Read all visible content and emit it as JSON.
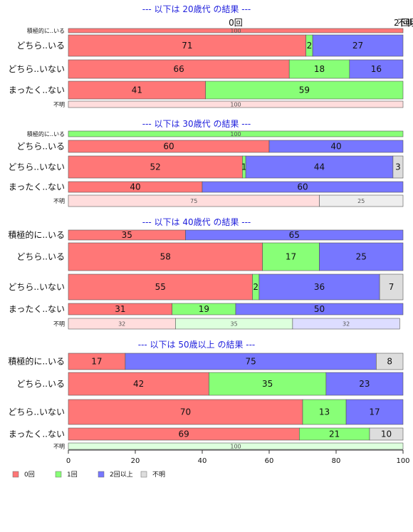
{
  "colors": {
    "c0": "#ff7777",
    "c1": "#88ff77",
    "c2": "#7777ff",
    "unk": "#dddddd",
    "c0_light": "#ffdddd",
    "c1_light": "#ddffdd",
    "c2_light": "#ddddff",
    "unk_light": "#eeeeee",
    "title": "#2222dd"
  },
  "legend": [
    "0回",
    "1回",
    "2回以上",
    "不明"
  ],
  "top_header": {
    "label": "0回",
    "crowded_labels": [
      "2",
      "不明",
      "回以上"
    ]
  },
  "chart_data": {
    "type": "bar",
    "orientation": "horizontal",
    "stacked": "percent",
    "series_names": [
      "0回",
      "1回",
      "2回以上",
      "不明"
    ],
    "xlim": [
      0,
      100
    ],
    "xticks": [
      "0",
      "20",
      "40",
      "60",
      "80",
      "100"
    ],
    "panels": [
      {
        "title": "--- 以下は 20歳代 の結果 ---",
        "rows": [
          {
            "label": "積極的に..いる",
            "values": [
              100,
              0,
              0,
              0
            ]
          },
          {
            "label": "どちら..いる",
            "values": [
              71,
              2,
              27,
              0
            ]
          },
          {
            "label": "どちら..いない",
            "values": [
              66,
              18,
              16,
              0
            ]
          },
          {
            "label": "まったく..ない",
            "values": [
              41,
              59,
              0,
              0
            ]
          },
          {
            "label": "不明",
            "values": [
              100,
              0,
              0,
              0
            ]
          }
        ]
      },
      {
        "title": "--- 以下は 30歳代 の結果 ---",
        "rows": [
          {
            "label": "積極的に..いる",
            "values": [
              0,
              100,
              0,
              0
            ]
          },
          {
            "label": "どちら..いる",
            "values": [
              60,
              0,
              40,
              0
            ]
          },
          {
            "label": "どちら..いない",
            "values": [
              52,
              1,
              44,
              3
            ]
          },
          {
            "label": "まったく..ない",
            "values": [
              40,
              0,
              60,
              0
            ]
          },
          {
            "label": "不明",
            "values": [
              75,
              0,
              0,
              25
            ]
          }
        ]
      },
      {
        "title": "--- 以下は 40歳代 の結果 ---",
        "rows": [
          {
            "label": "積極的に..いる",
            "values": [
              35,
              0,
              65,
              0
            ]
          },
          {
            "label": "どちら..いる",
            "values": [
              58,
              17,
              25,
              0
            ]
          },
          {
            "label": "どちら..いない",
            "values": [
              55,
              2,
              36,
              7
            ]
          },
          {
            "label": "まったく..ない",
            "values": [
              31,
              19,
              50,
              0
            ]
          },
          {
            "label": "不明",
            "values": [
              32,
              35,
              32,
              0
            ]
          }
        ]
      },
      {
        "title": "--- 以下は 50歳以上 の結果 ---",
        "rows": [
          {
            "label": "積極的に..いる",
            "values": [
              17,
              0,
              75,
              8
            ]
          },
          {
            "label": "どちら..いる",
            "values": [
              42,
              35,
              23,
              0
            ]
          },
          {
            "label": "どちら..いない",
            "values": [
              70,
              13,
              17,
              0
            ]
          },
          {
            "label": "まったく..ない",
            "values": [
              69,
              21,
              0,
              10
            ]
          },
          {
            "label": "不明",
            "values": [
              0,
              100,
              0,
              0
            ]
          }
        ]
      }
    ]
  }
}
